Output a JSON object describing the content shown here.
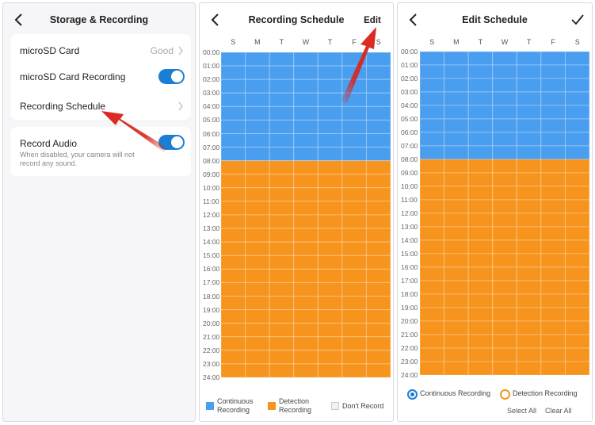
{
  "panel1": {
    "title": "Storage & Recording",
    "microsd_card": {
      "label": "microSD Card",
      "value": "Good"
    },
    "microsd_recording": {
      "label": "microSD Card Recording",
      "enabled": true
    },
    "recording_schedule": {
      "label": "Recording Schedule"
    },
    "record_audio": {
      "label": "Record Audio",
      "enabled": true,
      "description": "When disabled, your camera will not record any sound."
    }
  },
  "panel2": {
    "title": "Recording Schedule",
    "edit_label": "Edit",
    "legend": {
      "continuous": {
        "line1": "Continuous",
        "line2": "Recording"
      },
      "detection": {
        "line1": "Detection",
        "line2": "Recording"
      },
      "dont_record": "Don't Record"
    }
  },
  "panel3": {
    "title": "Edit Schedule",
    "continuous_option": "Continuous Recording",
    "detection_option": "Detection Recording",
    "selected_option": "continuous",
    "select_all": "Select All",
    "clear_all": "Clear All"
  },
  "days": [
    "S",
    "M",
    "T",
    "W",
    "T",
    "F",
    "S"
  ],
  "hours": [
    "00:00",
    "01:00",
    "02:00",
    "03:00",
    "04:00",
    "05:00",
    "06:00",
    "07:00",
    "08:00",
    "09:00",
    "10:00",
    "11:00",
    "12:00",
    "13:00",
    "14:00",
    "15:00",
    "16:00",
    "17:00",
    "18:00",
    "19:00",
    "20:00",
    "21:00",
    "22:00",
    "23:00",
    "24:00"
  ],
  "schedule": {
    "continuous_hours": [
      0,
      8
    ],
    "detection_hours": [
      8,
      24
    ]
  },
  "colors": {
    "continuous": "#4a9ef0",
    "detection": "#f7941d",
    "accent": "#1a7fd4",
    "dont_record": "#eef4ee",
    "annotation_arrow": "#d9261c"
  },
  "icons": {
    "back": "back-chevron-icon",
    "chevron": "chevron-right-icon",
    "confirm": "checkmark-icon"
  }
}
